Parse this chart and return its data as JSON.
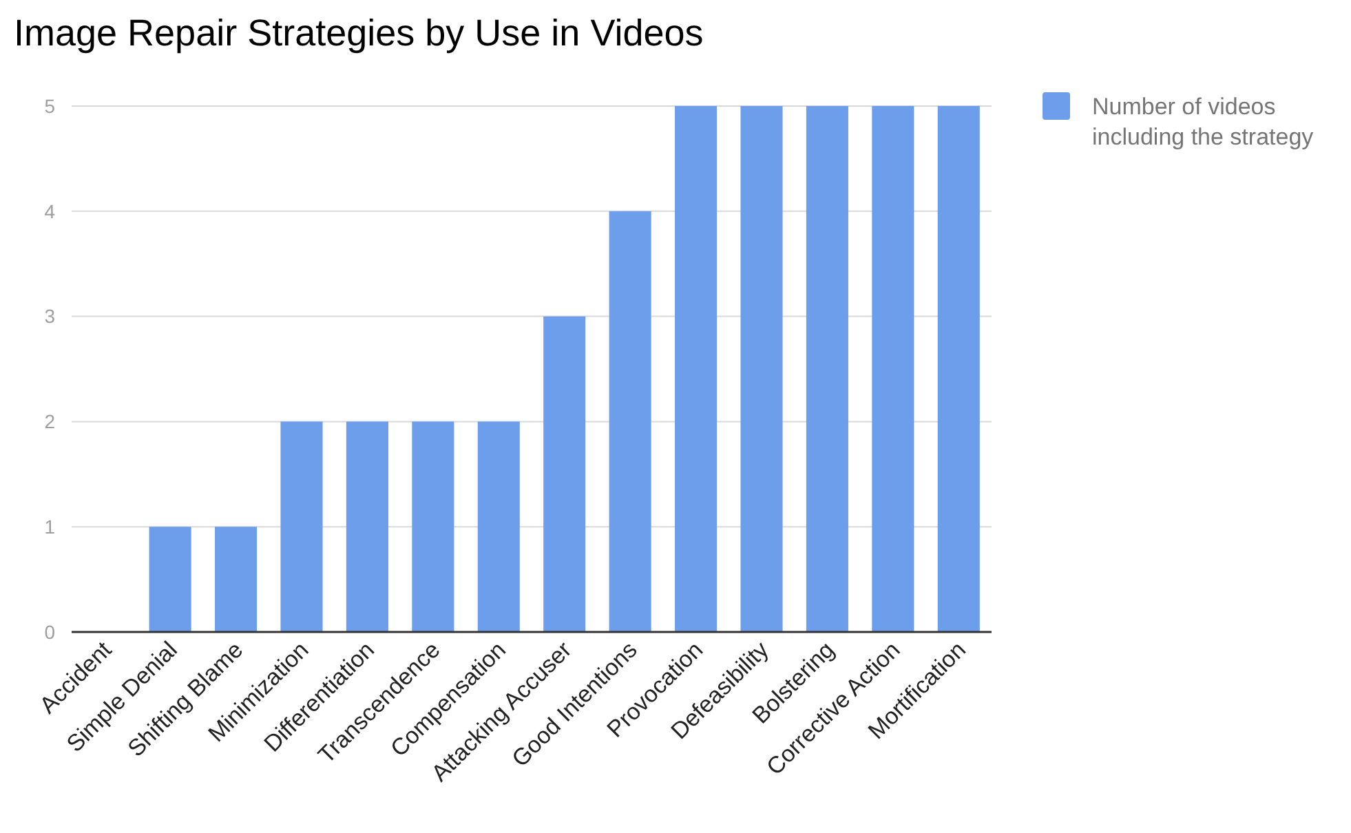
{
  "chart_data": {
    "type": "bar",
    "title": "Image Repair Strategies by Use in Videos",
    "categories": [
      "Accident",
      "Simple Denial",
      "Shifting Blame",
      "Minimization",
      "Differentiation",
      "Transcendence",
      "Compensation",
      "Attacking Accuser",
      "Good Intentions",
      "Provocation",
      "Defeasibility",
      "Bolstering",
      "Corrective Action",
      "Mortification"
    ],
    "series": [
      {
        "name": "Number of videos including the strategy",
        "color": "#6d9eeb",
        "values": [
          0,
          1,
          1,
          2,
          2,
          2,
          2,
          3,
          4,
          5,
          5,
          5,
          5,
          5
        ]
      }
    ],
    "ylim": [
      0,
      5
    ],
    "yticks": [
      0,
      1,
      2,
      3,
      4,
      5
    ],
    "grid": "y",
    "legend": "top right"
  }
}
